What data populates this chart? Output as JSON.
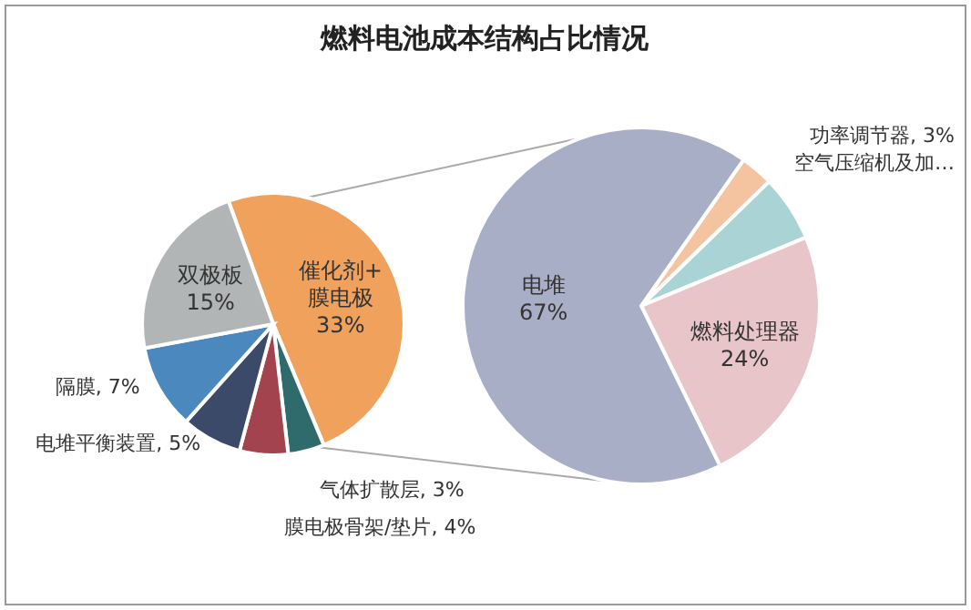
{
  "chart_data": [
    {
      "type": "pie",
      "title": "燃料电池成本结构占比情况",
      "categories": [
        "催化剂+膜电极",
        "气体扩散层",
        "膜电极骨架/垫片",
        "电堆平衡装置",
        "隔膜",
        "双极板"
      ],
      "values": [
        33,
        3,
        4,
        5,
        7,
        15
      ],
      "value_labels": [
        "33%",
        "3%",
        "4%",
        "5%",
        "7%",
        "15%"
      ],
      "colors": [
        "#f0a15c",
        "#2f6a6c",
        "#a3434d",
        "#3b4a68",
        "#4a88bd",
        "#b2b5b5"
      ]
    },
    {
      "type": "pie",
      "categories": [
        "功率调节器",
        "空气压缩机及加…",
        "燃料处理器",
        "电堆"
      ],
      "values": [
        3,
        6,
        24,
        67
      ],
      "value_labels": [
        "3%",
        null,
        "24%",
        "67%"
      ],
      "colors": [
        "#f4c3a0",
        "#a9d3d4",
        "#e8c5c9",
        "#a8aec6"
      ]
    }
  ]
}
